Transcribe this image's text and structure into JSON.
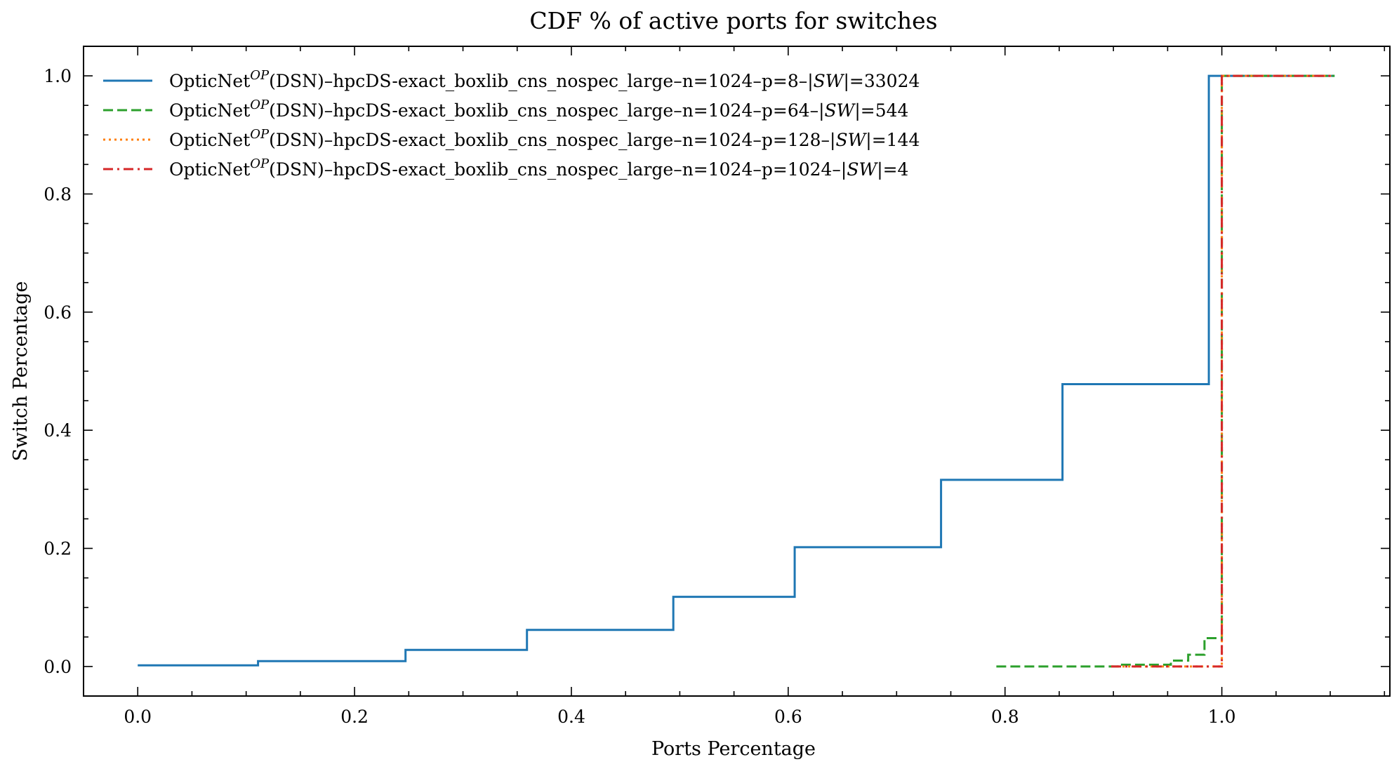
{
  "chart_data": {
    "type": "line",
    "title": "CDF % of active ports for switches",
    "xlabel": "Ports Percentage",
    "ylabel": "Switch Percentage",
    "xlim": [
      -0.05,
      1.155
    ],
    "ylim": [
      -0.05,
      1.05
    ],
    "xticks": [
      0.0,
      0.2,
      0.4,
      0.6,
      0.8,
      1.0
    ],
    "xtick_labels": [
      "0.0",
      "0.2",
      "0.4",
      "0.6",
      "0.8",
      "1.0"
    ],
    "yticks": [
      0.0,
      0.2,
      0.4,
      0.6,
      0.8,
      1.0
    ],
    "ytick_labels": [
      "0.0",
      "0.2",
      "0.4",
      "0.6",
      "0.8",
      "1.0"
    ],
    "minor_ticks": true,
    "grid": false,
    "legend_position": "top-left",
    "step": "post",
    "series": [
      {
        "name": "OpticNet^OP(DSN)–hpcDS-exact_boxlib_cns_nospec_large–n=1024–p=8–|SW|=33024",
        "legend_parts": [
          "OpticNet",
          "OP",
          "(DSN)–hpcDS-exact_boxlib_cns_nospec_large–n=1024–p=8–|",
          "SW",
          "|=33024"
        ],
        "color": "#1f77b4",
        "style": "solid",
        "x": [
          0.0,
          0.111,
          0.247,
          0.359,
          0.494,
          0.606,
          0.741,
          0.853,
          0.988,
          1.104
        ],
        "y": [
          0.002,
          0.009,
          0.028,
          0.062,
          0.118,
          0.202,
          0.316,
          0.478,
          1.0,
          1.0
        ]
      },
      {
        "name": "OpticNet^OP(DSN)–hpcDS-exact_boxlib_cns_nospec_large–n=1024–p=64–|SW|=544",
        "legend_parts": [
          "OpticNet",
          "OP",
          "(DSN)–hpcDS-exact_boxlib_cns_nospec_large–n=1024–p=64–|",
          "SW",
          "|=544"
        ],
        "color": "#2ca02c",
        "style": "dashed",
        "x": [
          0.792,
          0.906,
          0.953,
          0.969,
          0.984,
          1.0,
          1.104
        ],
        "y": [
          0.0,
          0.003,
          0.01,
          0.02,
          0.048,
          1.0,
          1.0
        ]
      },
      {
        "name": "OpticNet^OP(DSN)–hpcDS-exact_boxlib_cns_nospec_large–n=1024–p=128–|SW|=144",
        "legend_parts": [
          "OpticNet",
          "OP",
          "(DSN)–hpcDS-exact_boxlib_cns_nospec_large–n=1024–p=128–|",
          "SW",
          "|=144"
        ],
        "color": "#ff7f0e",
        "style": "dotted",
        "x": [
          0.898,
          0.992,
          1.0,
          1.104
        ],
        "y": [
          0.0,
          0.0,
          1.0,
          1.0
        ]
      },
      {
        "name": "OpticNet^OP(DSN)–hpcDS-exact_boxlib_cns_nospec_large–n=1024–p=1024–|SW|=4",
        "legend_parts": [
          "OpticNet",
          "OP",
          "(DSN)–hpcDS-exact_boxlib_cns_nospec_large–n=1024–p=1024–|",
          "SW",
          "|=4"
        ],
        "color": "#d62728",
        "style": "dashdot",
        "x": [
          0.898,
          1.0,
          1.104
        ],
        "y": [
          0.0,
          1.0,
          1.0
        ]
      }
    ]
  }
}
